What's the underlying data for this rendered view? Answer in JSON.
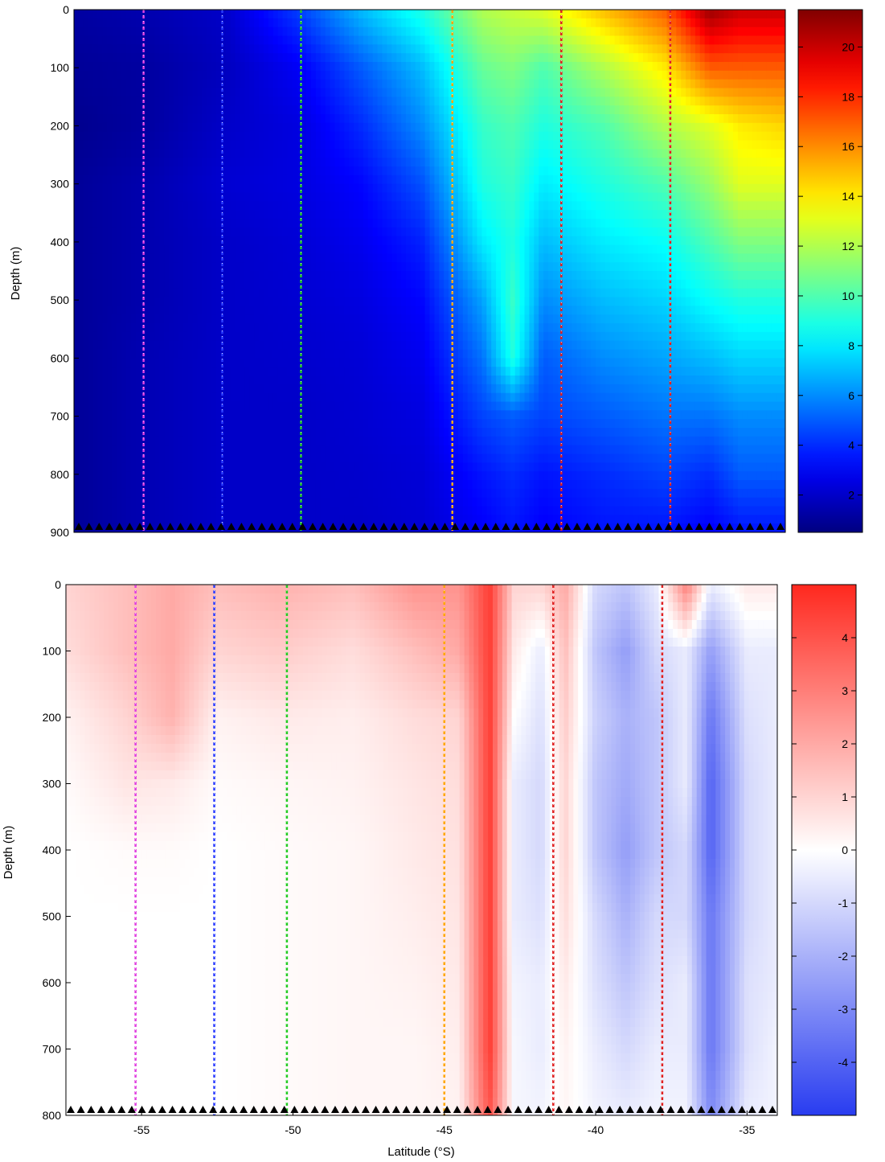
{
  "chart_data": [
    {
      "type": "heatmap",
      "panel": "top",
      "ylabel": "Depth (m)",
      "xlabel": "",
      "xlim": [
        -57.5,
        -34
      ],
      "ylim": [
        900,
        0
      ],
      "yticks": [
        0,
        100,
        200,
        300,
        400,
        500,
        600,
        700,
        800,
        900
      ],
      "colorbar": {
        "min": 0.5,
        "max": 21.5,
        "ticks": [
          2,
          4,
          6,
          8,
          10,
          12,
          14,
          16,
          18,
          20
        ],
        "colormap": "jet"
      },
      "front_lines": [
        {
          "lat": -55.2,
          "color": "#e040e0"
        },
        {
          "lat": -52.6,
          "color": "#2a3cff"
        },
        {
          "lat": -50.0,
          "color": "#22cc22"
        },
        {
          "lat": -45.0,
          "color": "#ffa500"
        },
        {
          "lat": -41.4,
          "color": "#e02020"
        },
        {
          "lat": -37.8,
          "color": "#e02020"
        }
      ],
      "profile_columns": [
        {
          "lat": -57.5,
          "values": [
            1.2,
            1.0,
            0.8,
            1.0,
            1.0,
            1.0,
            1.0,
            1.0,
            1.0,
            1.0
          ]
        },
        {
          "lat": -55.0,
          "values": [
            1.5,
            1.2,
            1.2,
            1.5,
            1.5,
            1.5,
            1.6,
            1.6,
            1.6,
            1.6
          ]
        },
        {
          "lat": -52.5,
          "values": [
            2.0,
            1.8,
            2.0,
            2.2,
            2.0,
            2.0,
            2.0,
            2.0,
            2.0,
            2.0
          ]
        },
        {
          "lat": -50.0,
          "values": [
            4.5,
            3.0,
            2.5,
            2.5,
            2.3,
            2.2,
            2.1,
            2.0,
            2.0,
            2.0
          ]
        },
        {
          "lat": -48.0,
          "values": [
            7.0,
            5.0,
            4.0,
            3.2,
            2.8,
            2.5,
            2.3,
            2.2,
            2.1,
            2.0
          ]
        },
        {
          "lat": -46.0,
          "values": [
            9.0,
            7.0,
            6.0,
            4.8,
            3.8,
            3.2,
            2.8,
            2.5,
            2.3,
            2.2
          ]
        },
        {
          "lat": -44.0,
          "values": [
            12.0,
            10.5,
            9.5,
            9.0,
            8.0,
            6.5,
            5.5,
            4.5,
            3.5,
            3.0
          ]
        },
        {
          "lat": -43.0,
          "values": [
            12.5,
            11.0,
            10.0,
            9.5,
            9.0,
            9.5,
            9.0,
            5.0,
            4.0,
            3.5
          ]
        },
        {
          "lat": -42.0,
          "values": [
            13.0,
            10.0,
            9.0,
            8.0,
            7.0,
            6.0,
            5.0,
            4.5,
            3.5,
            3.0
          ]
        },
        {
          "lat": -40.0,
          "values": [
            15.0,
            12.0,
            10.0,
            9.0,
            8.0,
            7.0,
            6.0,
            5.0,
            4.0,
            3.5
          ]
        },
        {
          "lat": -38.0,
          "values": [
            17.0,
            14.0,
            12.0,
            10.0,
            8.5,
            7.5,
            6.5,
            5.5,
            4.5,
            3.5
          ]
        },
        {
          "lat": -36.5,
          "values": [
            21.0,
            17.0,
            13.0,
            11.5,
            10.0,
            8.5,
            7.0,
            5.5,
            4.0,
            3.0
          ]
        },
        {
          "lat": -35.5,
          "values": [
            20.0,
            17.0,
            14.0,
            13.0,
            11.0,
            9.0,
            7.5,
            6.0,
            5.0,
            3.5
          ]
        },
        {
          "lat": -34.0,
          "values": [
            20.0,
            17.0,
            14.5,
            13.0,
            11.0,
            9.0,
            7.5,
            6.0,
            5.0,
            3.5
          ]
        }
      ]
    },
    {
      "type": "heatmap",
      "panel": "bottom",
      "ylabel": "Depth (m)",
      "xlabel": "Latitude (°S)",
      "xlim": [
        -57.5,
        -34
      ],
      "xticks": [
        -55,
        -50,
        -45,
        -40,
        -35
      ],
      "ylim": [
        800,
        0
      ],
      "yticks": [
        0,
        100,
        200,
        300,
        400,
        500,
        600,
        700,
        800
      ],
      "colorbar": {
        "min": -5,
        "max": 5,
        "ticks": [
          -4,
          -3,
          -2,
          -1,
          0,
          1,
          2,
          3,
          4
        ],
        "colormap": "blue-white-red"
      },
      "front_lines": [
        {
          "lat": -55.2,
          "color": "#e040e0"
        },
        {
          "lat": -52.6,
          "color": "#2a3cff"
        },
        {
          "lat": -50.2,
          "color": "#22cc22"
        },
        {
          "lat": -45.0,
          "color": "#ffa500"
        },
        {
          "lat": -41.4,
          "color": "#e02020"
        },
        {
          "lat": -37.8,
          "color": "#e02020"
        }
      ],
      "profile_columns": [
        {
          "lat": -57.5,
          "values": [
            1.0,
            0.8,
            0.3,
            0.1,
            0.0,
            0.0,
            0.0,
            0.0,
            0.0
          ]
        },
        {
          "lat": -55.5,
          "values": [
            1.5,
            1.5,
            1.0,
            0.6,
            0.1,
            0.0,
            0.0,
            0.0,
            0.0
          ]
        },
        {
          "lat": -54.0,
          "values": [
            2.0,
            2.0,
            1.8,
            0.5,
            0.1,
            0.0,
            0.0,
            0.0,
            0.0
          ]
        },
        {
          "lat": -52.5,
          "values": [
            1.5,
            1.0,
            0.3,
            0.1,
            0.0,
            0.0,
            0.0,
            0.0,
            0.0
          ]
        },
        {
          "lat": -50.5,
          "values": [
            1.8,
            1.2,
            0.5,
            0.2,
            0.1,
            0.1,
            0.1,
            0.1,
            0.1
          ]
        },
        {
          "lat": -48.0,
          "values": [
            1.5,
            0.8,
            0.4,
            0.3,
            0.2,
            0.2,
            0.2,
            0.2,
            0.2
          ]
        },
        {
          "lat": -46.0,
          "values": [
            2.5,
            1.5,
            0.8,
            0.6,
            0.5,
            0.4,
            0.3,
            0.2,
            0.2
          ]
        },
        {
          "lat": -44.5,
          "values": [
            2.5,
            2.0,
            1.0,
            0.8,
            0.7,
            0.6,
            0.5,
            0.4,
            0.3
          ]
        },
        {
          "lat": -43.5,
          "values": [
            4.5,
            4.5,
            4.5,
            4.5,
            4.5,
            4.5,
            4.5,
            4.5,
            4.0
          ]
        },
        {
          "lat": -42.7,
          "values": [
            1.0,
            0.5,
            0.0,
            -0.5,
            -0.5,
            -0.5,
            -0.3,
            -0.2,
            -0.2
          ]
        },
        {
          "lat": -41.8,
          "values": [
            1.0,
            -0.5,
            -0.8,
            -1.0,
            -1.0,
            -0.8,
            -0.5,
            -0.5,
            -0.3
          ]
        },
        {
          "lat": -41.0,
          "values": [
            2.0,
            1.5,
            1.2,
            1.0,
            1.0,
            0.8,
            0.5,
            0.3,
            0.2
          ]
        },
        {
          "lat": -40.0,
          "values": [
            -1.0,
            -1.5,
            -1.2,
            -1.5,
            -1.5,
            -1.0,
            -0.8,
            -0.5,
            -0.3
          ]
        },
        {
          "lat": -39.0,
          "values": [
            -1.5,
            -2.5,
            -2.0,
            -2.2,
            -2.5,
            -2.0,
            -1.5,
            -1.0,
            -0.5
          ]
        },
        {
          "lat": -38.0,
          "values": [
            -0.5,
            -1.0,
            -1.5,
            -1.5,
            -1.5,
            -1.0,
            -0.8,
            -0.5,
            -0.3
          ]
        },
        {
          "lat": -37.0,
          "values": [
            3.0,
            -0.5,
            -0.5,
            -0.5,
            -1.0,
            -1.0,
            -0.5,
            -0.5,
            -0.3
          ]
        },
        {
          "lat": -36.2,
          "values": [
            -0.5,
            -2.5,
            -3.5,
            -4.0,
            -4.0,
            -3.5,
            -3.5,
            -3.5,
            -3.0
          ]
        },
        {
          "lat": -35.0,
          "values": [
            0.5,
            -0.5,
            -0.8,
            -1.0,
            -1.0,
            -1.0,
            -0.8,
            -0.8,
            -0.5
          ]
        },
        {
          "lat": -34.0,
          "values": [
            0.5,
            -0.5,
            -0.5,
            -0.5,
            -0.5,
            -0.5,
            -0.5,
            -0.3,
            -0.3
          ]
        }
      ]
    }
  ]
}
